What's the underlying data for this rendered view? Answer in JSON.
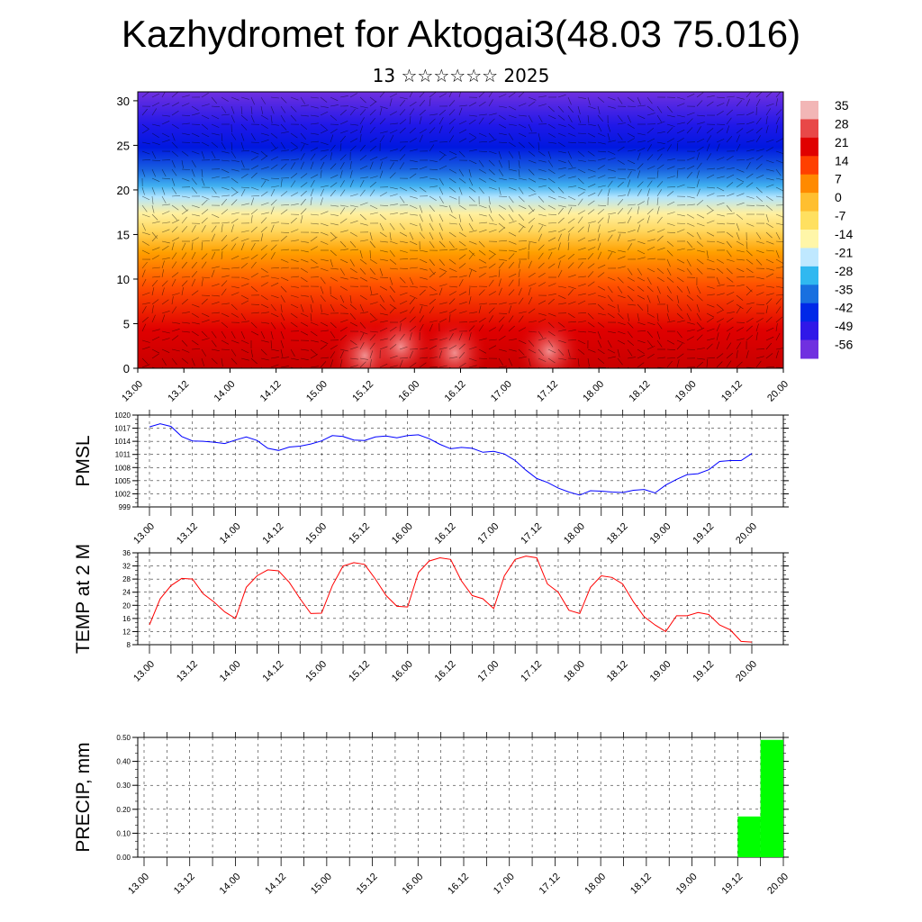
{
  "header": {
    "title": "Kazhydromet for Aktogai3(48.03 75.016)",
    "subtitle": "13 ☆☆☆☆☆☆ 2025"
  },
  "time_labels": [
    "13.00",
    "13.12",
    "14.00",
    "14.12",
    "15.00",
    "15.12",
    "16.00",
    "16.12",
    "17.00",
    "17.12",
    "18.00",
    "18.12",
    "19.00",
    "19.12",
    "20.00"
  ],
  "colors": {
    "pmsl_line": "#0000ff",
    "temp_line": "#ff0000",
    "precip_bar": "#00ff00",
    "grid": "#000000"
  },
  "chart_data": [
    {
      "type": "heatmap",
      "title": "",
      "xlabel": "",
      "ylabel": "",
      "ylim": [
        0,
        31
      ],
      "yticks": [
        0,
        5,
        10,
        15,
        20,
        25,
        30
      ],
      "x": [
        "13.00",
        "13.12",
        "14.00",
        "14.12",
        "15.00",
        "15.12",
        "16.00",
        "16.12",
        "17.00",
        "17.12",
        "18.00",
        "18.12",
        "19.00",
        "19.12",
        "20.00"
      ],
      "overlay": "wind barbs",
      "colorbar": {
        "labels": [
          "35",
          "28",
          "21",
          "14",
          "7",
          "0",
          "-7",
          "-14",
          "-21",
          "-28",
          "-35",
          "-42",
          "-49",
          "-56"
        ],
        "colors": [
          "#f2b6b6",
          "#e84848",
          "#e00000",
          "#ff4000",
          "#ff8a00",
          "#ffbf30",
          "#ffe060",
          "#fff6a8",
          "#bfe8ff",
          "#30b8f0",
          "#1870e0",
          "#0028e8",
          "#3018e8",
          "#7030e0"
        ]
      }
    },
    {
      "type": "line",
      "ylabel": "PMSL",
      "ylim": [
        999,
        1020
      ],
      "yticks": [
        999,
        1002,
        1005,
        1008,
        1011,
        1014,
        1017,
        1020
      ],
      "x_hours": [
        0,
        3,
        6,
        9,
        12,
        15,
        18,
        21,
        24,
        27,
        30,
        33,
        36,
        39,
        42,
        45,
        48,
        51,
        54,
        57,
        60,
        63,
        66,
        69,
        72,
        75,
        78,
        81,
        84,
        87,
        90,
        93,
        96,
        99,
        102,
        105,
        108,
        111,
        114,
        117,
        120,
        123,
        126,
        129,
        132,
        135,
        138,
        141,
        144,
        147,
        150,
        153,
        156,
        159,
        162,
        165,
        168
      ],
      "series": [
        {
          "values": [
            1017.3,
            1018,
            1017.4,
            1015.1,
            1014.1,
            1014,
            1013.8,
            1013.5,
            1014.3,
            1015,
            1014.2,
            1012.4,
            1011.9,
            1012.7,
            1012.9,
            1013.4,
            1014.1,
            1015.3,
            1015.1,
            1014.3,
            1014.2,
            1015,
            1015.2,
            1014.8,
            1015.3,
            1015.5,
            1014.6,
            1013.3,
            1012.3,
            1012.6,
            1012.4,
            1011.5,
            1011.7,
            1011.1,
            1009.6,
            1007.4,
            1005.5,
            1004.6,
            1003.3,
            1002.4,
            1001.7,
            1002.7,
            1002.6,
            1002.4,
            1002.3,
            1002.8,
            1003,
            1002.2,
            1004,
            1005.3,
            1006.4,
            1006.6,
            1007.5,
            1009.4,
            1009.6,
            1009.6,
            1011.2
          ]
        }
      ]
    },
    {
      "type": "line",
      "ylabel": "TEMP at 2 M",
      "ylim": [
        8,
        36
      ],
      "yticks": [
        8,
        12,
        16,
        20,
        24,
        28,
        32,
        36
      ],
      "x_hours": [
        0,
        3,
        6,
        9,
        12,
        15,
        18,
        21,
        24,
        27,
        30,
        33,
        36,
        39,
        42,
        45,
        48,
        51,
        54,
        57,
        60,
        63,
        66,
        69,
        72,
        75,
        78,
        81,
        84,
        87,
        90,
        93,
        96,
        99,
        102,
        105,
        108,
        111,
        114,
        117,
        120,
        123,
        126,
        129,
        132,
        135,
        138,
        141,
        144,
        147,
        150,
        153,
        156,
        159,
        162,
        165,
        168
      ],
      "series": [
        {
          "values": [
            14,
            22,
            26,
            28.2,
            28,
            23.5,
            21,
            18,
            16,
            25.5,
            29,
            30.8,
            30.5,
            27,
            22,
            17.5,
            17.6,
            26,
            32,
            33,
            32.5,
            28,
            23,
            19.7,
            19.5,
            30,
            33.5,
            34.5,
            34,
            27.5,
            23,
            22,
            19,
            29,
            34,
            35,
            34.5,
            26.5,
            24,
            18.5,
            17.5,
            25.5,
            29,
            28.5,
            26.5,
            21,
            16.5,
            14,
            12,
            16.8,
            16.8,
            17.8,
            17.2,
            14,
            12.5,
            9,
            8.8
          ]
        }
      ]
    },
    {
      "type": "bar",
      "ylabel": "PRECIP, mm",
      "ylim": [
        0,
        0.5
      ],
      "yticks": [
        "0.00",
        "0.10",
        "0.20",
        "0.30",
        "0.40",
        "0.50"
      ],
      "bars": [
        {
          "start_hour": 156,
          "end_hour": 162,
          "value": 0.17
        },
        {
          "start_hour": 162,
          "end_hour": 168,
          "value": 0.49
        }
      ]
    }
  ]
}
